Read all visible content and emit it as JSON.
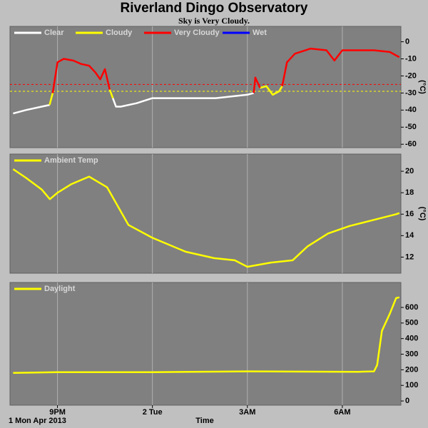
{
  "header": {
    "title": "Riverland Dingo Observatory",
    "subtitle": "Sky is Very Cloudy."
  },
  "chart_data": [
    {
      "type": "line",
      "ylabel": "(°C)",
      "x": [
        19.6,
        20.0,
        20.5,
        20.75,
        20.85,
        21.0,
        21.2,
        21.5,
        21.75,
        22.0,
        22.2,
        22.35,
        22.5,
        22.65,
        22.75,
        22.85,
        23.0,
        23.5,
        24.0,
        25.0,
        26.0,
        27.0,
        27.2,
        27.25,
        27.4,
        27.6,
        27.8,
        28.0,
        28.1,
        28.25,
        28.5,
        29.0,
        29.5,
        29.75,
        30.0,
        30.5,
        31.0,
        31.5,
        31.8
      ],
      "series": [
        {
          "name": "Clear",
          "color": "#ffffff",
          "values": [
            -42,
            -40,
            -38,
            -37,
            null,
            null,
            null,
            null,
            null,
            null,
            null,
            null,
            null,
            null,
            -33,
            -38,
            -38,
            -36,
            -33,
            -33,
            -33,
            -31,
            -30,
            null,
            null,
            null,
            -31,
            -29,
            null,
            null,
            null,
            null,
            null,
            null,
            null,
            null,
            null,
            null,
            null
          ]
        },
        {
          "name": "Cloudy",
          "color": "#ffff00",
          "values": [
            null,
            null,
            null,
            -37,
            -30,
            null,
            null,
            null,
            null,
            null,
            null,
            null,
            null,
            -28,
            -33,
            null,
            null,
            null,
            null,
            null,
            null,
            null,
            null,
            null,
            -27,
            -26,
            -31,
            -29,
            -26,
            null,
            null,
            null,
            null,
            null,
            null,
            null,
            null,
            null,
            null
          ]
        },
        {
          "name": "Very Cloudy",
          "color": "#ff0000",
          "values": [
            null,
            null,
            null,
            null,
            -30,
            -12,
            -10,
            -11,
            -13,
            -14,
            -18,
            -22,
            -16,
            -28,
            null,
            null,
            null,
            null,
            null,
            null,
            null,
            null,
            -30,
            -21,
            -27,
            null,
            null,
            null,
            -26,
            -12,
            -7,
            -4,
            -5,
            -11,
            -5,
            -5,
            -5,
            -6,
            -9
          ]
        },
        {
          "name": "Wet",
          "color": "#0000ff",
          "values": [
            null,
            null,
            null,
            null,
            null,
            null,
            null,
            null,
            null,
            null,
            null,
            null,
            null,
            null,
            null,
            null,
            null,
            null,
            null,
            null,
            null,
            null,
            null,
            null,
            null,
            null,
            null,
            null,
            null,
            null,
            null,
            null,
            null,
            null,
            null,
            null,
            null,
            null,
            null
          ]
        }
      ],
      "thresholds": [
        {
          "value": -25,
          "color": "#ff0000"
        },
        {
          "value": -29,
          "color": "#ffff00"
        }
      ],
      "xlim": [
        19.5,
        31.85
      ],
      "xticks": [
        21,
        24,
        27,
        30
      ],
      "ylim": [
        -62,
        9
      ],
      "yticks": [
        0,
        -10,
        -20,
        -30,
        -40,
        -50,
        -60
      ]
    },
    {
      "type": "line",
      "ylabel": "(°C)",
      "x": [
        19.6,
        20.0,
        20.5,
        20.76,
        21.0,
        21.44,
        22.0,
        22.57,
        23.24,
        24.0,
        25.05,
        25.95,
        26.6,
        27.0,
        27.76,
        28.43,
        28.9,
        29.55,
        30.23,
        30.9,
        31.7,
        31.8
      ],
      "series": [
        {
          "name": "Ambient Temp",
          "color": "#ffff00",
          "values": [
            20.2,
            19.4,
            18.3,
            17.4,
            18.0,
            18.8,
            19.5,
            18.5,
            15.0,
            13.8,
            12.5,
            11.9,
            11.7,
            11.1,
            11.5,
            11.7,
            13.0,
            14.2,
            14.9,
            15.4,
            16.0,
            16.1
          ]
        }
      ],
      "xlim": [
        19.5,
        31.85
      ],
      "xticks": [
        21,
        24,
        27,
        30
      ],
      "ylim": [
        10.5,
        21.6
      ],
      "yticks": [
        12,
        14,
        16,
        18,
        20
      ]
    },
    {
      "type": "line",
      "x": [
        19.6,
        21.0,
        24.0,
        27.0,
        29.0,
        30.5,
        31.0,
        31.1,
        31.25,
        31.5,
        31.7,
        31.8
      ],
      "series": [
        {
          "name": "Daylight",
          "color": "#ffff00",
          "values": [
            180,
            185,
            185,
            190,
            188,
            187,
            190,
            230,
            450,
            560,
            660,
            665
          ]
        }
      ],
      "xlim": [
        19.5,
        31.85
      ],
      "xticks": [
        {
          "value": 21,
          "label": "9PM"
        },
        {
          "value": 24,
          "label": "2 Tue"
        },
        {
          "value": 27,
          "label": "3AM"
        },
        {
          "value": 30,
          "label": "6AM"
        }
      ],
      "xlabel": "Time",
      "date_label": "1 Mon Apr 2013",
      "ylim": [
        -27,
        760
      ],
      "yticks": [
        0,
        100,
        200,
        300,
        400,
        500,
        600
      ]
    }
  ]
}
